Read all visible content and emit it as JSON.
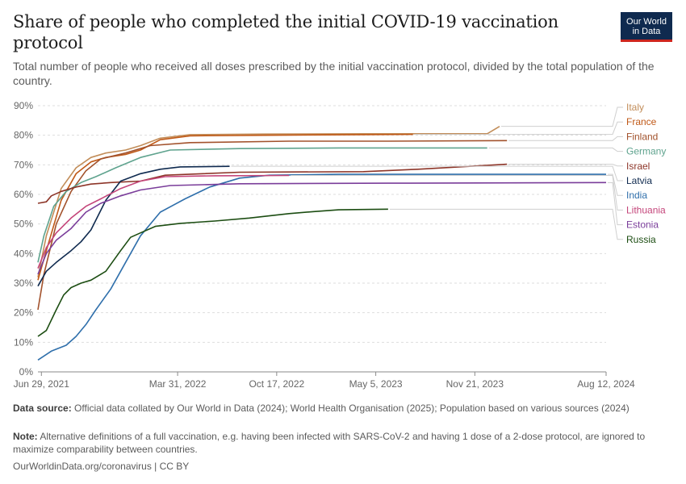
{
  "header": {
    "title": "Share of people who completed the initial COVID-19 vaccination protocol",
    "subtitle": "Total number of people who received all doses prescribed by the initial vaccination protocol, divided by the total population of the country."
  },
  "logo": {
    "line1": "Our World",
    "line2": "in Data"
  },
  "footer": {
    "source_label": "Data source:",
    "source_text": "Official data collated by Our World in Data (2024); World Health Organisation (2025); Population based on various sources (2024)",
    "note_label": "Note:",
    "note_text": "Alternative definitions of a full vaccination, e.g. having been infected with SARS-CoV-2 and having 1 dose of a 2-dose protocol, are ignored to maximize comparability between countries.",
    "credit": "OurWorldinData.org/coronavirus | CC BY"
  },
  "chart_data": {
    "type": "line",
    "title": "Share of people who completed the initial COVID-19 vaccination protocol",
    "xlabel": "",
    "ylabel": "",
    "x_unit": "days since Jun 29, 2021",
    "xlim": [
      -7,
      1140
    ],
    "ylim": [
      0,
      90
    ],
    "y_ticks": [
      0,
      10,
      20,
      30,
      40,
      50,
      60,
      70,
      80,
      90
    ],
    "y_tick_labels": [
      "0%",
      "10%",
      "20%",
      "30%",
      "40%",
      "50%",
      "60%",
      "70%",
      "80%",
      "90%"
    ],
    "x_ticks": [
      0,
      275,
      475,
      675,
      875,
      1140
    ],
    "x_tick_labels": [
      "Jun 29, 2021",
      "Mar 31, 2022",
      "Oct 17, 2022",
      "May 5, 2023",
      "Nov 21, 2023",
      "Aug 12, 2024"
    ],
    "grid": "horizontal dashed",
    "legend": "right, labels aligned at line ends",
    "series": [
      {
        "name": "Italy",
        "color": "#c28d59",
        "x": [
          -7,
          10,
          40,
          70,
          100,
          130,
          170,
          200,
          240,
          300,
          450,
          650,
          900,
          925
        ],
        "y": [
          32,
          46,
          62,
          69,
          72.5,
          74,
          75,
          76.5,
          79,
          80.2,
          80.4,
          80.5,
          80.5,
          83
        ]
      },
      {
        "name": "France",
        "color": "#c05917",
        "x": [
          -7,
          10,
          40,
          70,
          100,
          130,
          170,
          200,
          240,
          300,
          450,
          650,
          750
        ],
        "y": [
          31,
          41,
          58,
          67,
          71,
          72.5,
          73.5,
          75,
          78.5,
          79.8,
          80,
          80.2,
          80.3
        ]
      },
      {
        "name": "Finland",
        "color": "#a2522c",
        "x": [
          -7,
          5,
          30,
          60,
          90,
          120,
          170,
          220,
          300,
          500,
          700,
          940
        ],
        "y": [
          21,
          33,
          50,
          61,
          68,
          72,
          74,
          76.5,
          77.5,
          78,
          78,
          78.2
        ]
      },
      {
        "name": "Germany",
        "color": "#5fa38e",
        "x": [
          -7,
          5,
          25,
          50,
          80,
          110,
          150,
          200,
          260,
          400,
          600,
          900
        ],
        "y": [
          37,
          46,
          56,
          61,
          64,
          66,
          69,
          72.5,
          75,
          75.5,
          75.7,
          75.7
        ]
      },
      {
        "name": "Israel",
        "color": "#8d3528",
        "x": [
          -7,
          10,
          20,
          40,
          70,
          100,
          140,
          200,
          250,
          400,
          650,
          760,
          940
        ],
        "y": [
          57,
          57.5,
          59.5,
          61,
          62.5,
          63.5,
          64,
          64.5,
          66.5,
          67.5,
          67.7,
          68.5,
          70.2
        ]
      },
      {
        "name": "Latvia",
        "color": "#0f2a4f",
        "x": [
          -7,
          10,
          30,
          60,
          80,
          100,
          130,
          160,
          200,
          240,
          280,
          380
        ],
        "y": [
          29,
          34,
          37,
          41,
          44,
          48,
          58,
          64.5,
          67,
          68.5,
          69.3,
          69.5
        ]
      },
      {
        "name": "India",
        "color": "#2f6fab",
        "x": [
          -7,
          20,
          50,
          70,
          90,
          110,
          140,
          170,
          200,
          240,
          290,
          340,
          400,
          460,
          600,
          800,
          1140
        ],
        "y": [
          4,
          7,
          9,
          12,
          16,
          21,
          28,
          37,
          46,
          54,
          58.5,
          62.5,
          65.5,
          66.5,
          66.8,
          66.8,
          66.8
        ]
      },
      {
        "name": "Lithuania",
        "color": "#c4457a",
        "x": [
          -7,
          10,
          30,
          60,
          90,
          120,
          160,
          200,
          250,
          350,
          500
        ],
        "y": [
          35,
          42,
          47,
          52,
          56,
          58.5,
          62,
          64.5,
          66,
          66.3,
          66.4
        ]
      },
      {
        "name": "Estonia",
        "color": "#7a3d9a",
        "x": [
          -7,
          10,
          30,
          60,
          90,
          120,
          160,
          200,
          260,
          400,
          700,
          1140
        ],
        "y": [
          33,
          40,
          44.5,
          48.5,
          54,
          57,
          59.5,
          61.5,
          63,
          63.6,
          63.8,
          64
        ]
      },
      {
        "name": "Russia",
        "color": "#1c4d12",
        "x": [
          -7,
          10,
          30,
          45,
          60,
          80,
          100,
          130,
          160,
          180,
          200,
          230,
          280,
          350,
          420,
          500,
          550,
          600,
          700
        ],
        "y": [
          12,
          14,
          21,
          26,
          28.5,
          30,
          31,
          34,
          41,
          45.5,
          47,
          49.2,
          50.2,
          51,
          52,
          53.5,
          54.2,
          54.8,
          55
        ]
      }
    ]
  }
}
